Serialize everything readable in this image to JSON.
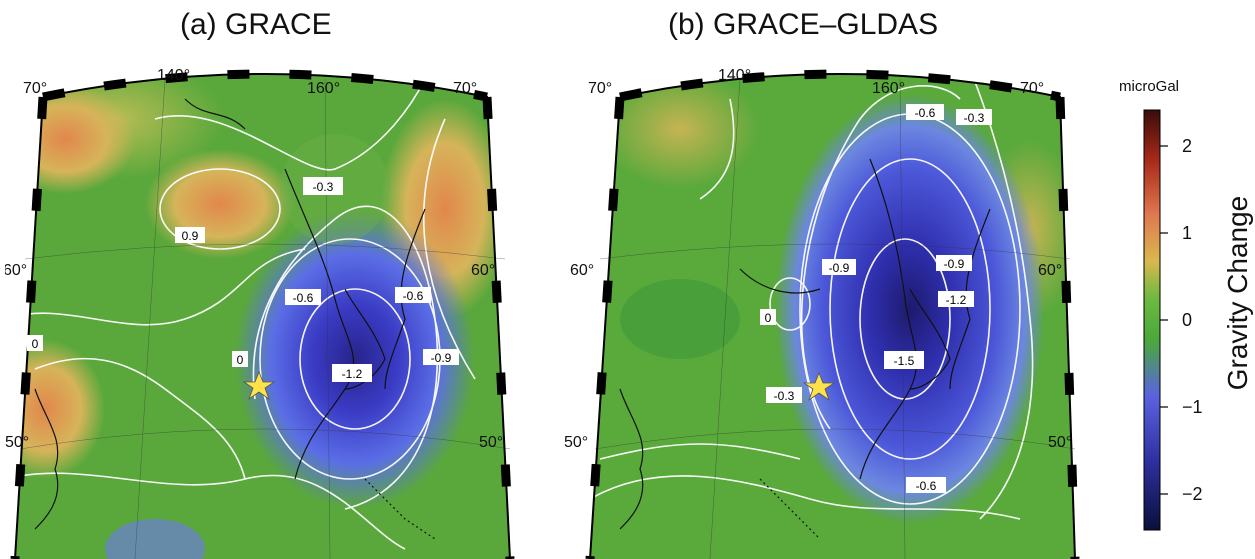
{
  "panels": [
    {
      "title": "(a) GRACE",
      "lon_labels": [
        "140°",
        "160°"
      ],
      "lat_labels": {
        "top_left": "70°",
        "top_right": "70°",
        "mid_left": "60°",
        "mid_right": "60°",
        "bot_left": "50°",
        "bot_right": "50°"
      },
      "contour_labels": [
        "-0.3",
        "0.9",
        "-0.6",
        "-0.6",
        "0",
        "0",
        "-1.2",
        "-0.9"
      ]
    },
    {
      "title": "(b) GRACE–GLDAS",
      "lon_labels": [
        "140°",
        "160°"
      ],
      "lat_labels": {
        "top_left": "70°",
        "top_right": "70°",
        "mid_left": "60°",
        "mid_right": "60°",
        "bot_left": "50°",
        "bot_right": "50°"
      },
      "contour_labels": [
        "-0.6",
        "-0.3",
        "-0.9",
        "-0.9",
        "-1.2",
        "0",
        "-1.5",
        "-0.3",
        "-0.6"
      ]
    }
  ],
  "colorbar": {
    "unit": "microGal",
    "label": "Gravity Change",
    "ticks": [
      "2",
      "1",
      "0",
      "−1",
      "−2"
    ],
    "range": [
      -2.4,
      2.4
    ],
    "colors": [
      "#0a0f3a",
      "#2d2f9e",
      "#5a63e0",
      "#4aa83c",
      "#6cb93f",
      "#d9b84f",
      "#e0794f",
      "#a82a1a",
      "#3a0c08"
    ]
  },
  "markers": [
    {
      "name": "epicenter-star",
      "color": "#ffe14a"
    },
    {
      "name": "epicenter-star",
      "color": "#ffe14a"
    }
  ]
}
